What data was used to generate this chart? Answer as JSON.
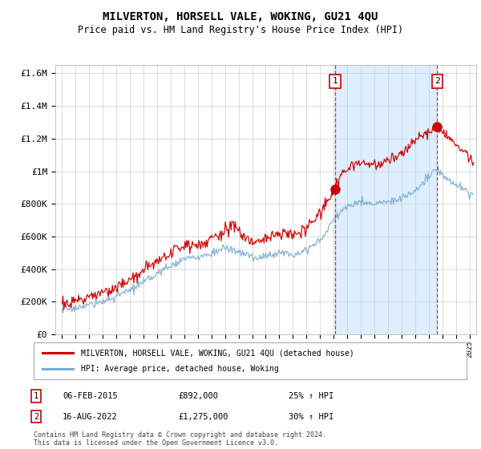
{
  "title": "MILVERTON, HORSELL VALE, WOKING, GU21 4QU",
  "subtitle": "Price paid vs. HM Land Registry's House Price Index (HPI)",
  "ylabel_ticks": [
    "£0",
    "£200K",
    "£400K",
    "£600K",
    "£800K",
    "£1M",
    "£1.2M",
    "£1.4M",
    "£1.6M"
  ],
  "ytick_values": [
    0,
    200000,
    400000,
    600000,
    800000,
    1000000,
    1200000,
    1400000,
    1600000
  ],
  "ylim": [
    0,
    1650000
  ],
  "xlim_start": 1994.5,
  "xlim_end": 2025.5,
  "marker1_x": 2015.1,
  "marker1_y": 892000,
  "marker2_x": 2022.62,
  "marker2_y": 1275000,
  "legend_line1": "MILVERTON, HORSELL VALE, WOKING, GU21 4QU (detached house)",
  "legend_line2": "HPI: Average price, detached house, Woking",
  "footer": "Contains HM Land Registry data © Crown copyright and database right 2024.\nThis data is licensed under the Open Government Licence v3.0.",
  "line_color_red": "#cc0000",
  "line_color_blue": "#7aadcf",
  "shade_color": "#ddeeff",
  "dashed_line_color": "#cc0000",
  "background_color": "#ffffff",
  "grid_color": "#cccccc"
}
